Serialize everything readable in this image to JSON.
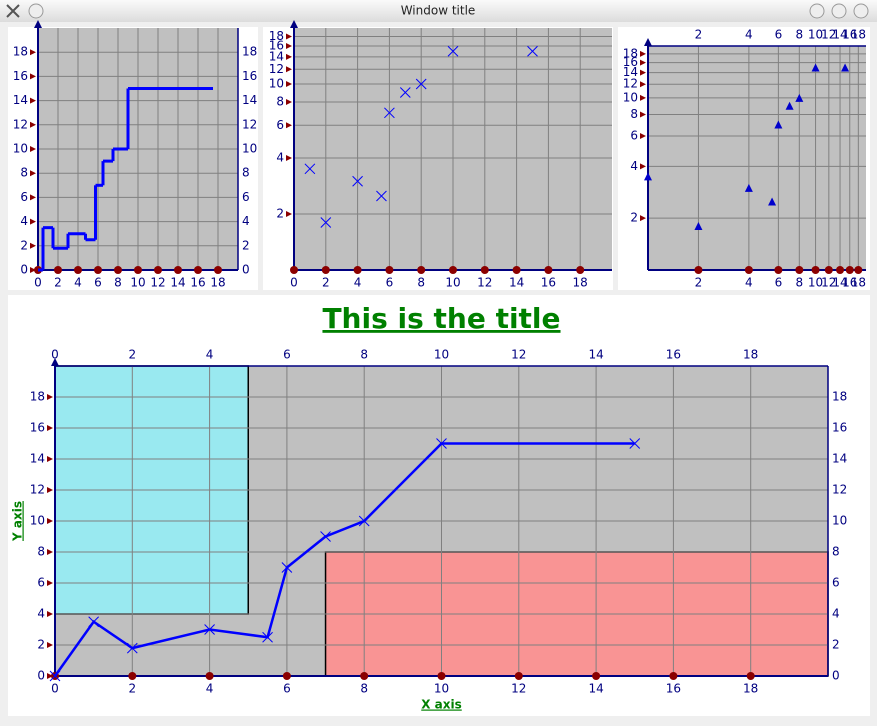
{
  "window": {
    "title": "Window title"
  },
  "chart_data": [
    {
      "type": "step",
      "x": [
        0,
        1,
        2,
        4,
        5.5,
        6,
        7,
        8,
        10,
        15
      ],
      "series": [
        {
          "color": "#0000ff",
          "values": [
            0,
            3.5,
            1.8,
            3,
            2.5,
            7,
            9,
            10,
            15,
            15
          ]
        }
      ],
      "xlim": [
        0,
        20
      ],
      "ylim": [
        0,
        20
      ],
      "xticks": [
        0,
        2,
        4,
        6,
        8,
        10,
        12,
        14,
        16,
        18
      ],
      "yticks": [
        0,
        2,
        4,
        6,
        8,
        10,
        12,
        14,
        16,
        18
      ],
      "grid": true,
      "mirror_y": true,
      "mirror_x": false,
      "xlog": false,
      "ylog": false
    },
    {
      "type": "scatter",
      "marker": "x",
      "x": [
        1,
        2,
        4,
        5.5,
        6,
        7,
        8,
        10,
        15
      ],
      "series": [
        {
          "color": "#0000ff",
          "values": [
            3.5,
            1.8,
            3,
            2.5,
            7,
            9,
            10,
            15,
            15
          ]
        }
      ],
      "xlim": [
        0,
        20
      ],
      "ylim": [
        1,
        20
      ],
      "xticks": [
        0,
        2,
        4,
        6,
        8,
        10,
        12,
        14,
        16,
        18
      ],
      "yticks": [
        2,
        4,
        6,
        8,
        10,
        12,
        14,
        16,
        18
      ],
      "grid": true,
      "mirror_y": false,
      "mirror_x": false,
      "xlog": false,
      "ylog": true
    },
    {
      "type": "scatter",
      "marker": "triangle",
      "x": [
        1,
        2,
        4,
        5.5,
        6,
        7,
        8,
        10,
        15
      ],
      "series": [
        {
          "color": "#0000cc",
          "values": [
            3.5,
            1.8,
            3,
            2.5,
            7,
            9,
            10,
            15,
            15
          ]
        }
      ],
      "xlim": [
        1,
        20
      ],
      "ylim": [
        1,
        20
      ],
      "xticks": [
        2,
        4,
        6,
        8,
        10,
        12,
        14,
        16,
        18
      ],
      "yticks": [
        2,
        4,
        6,
        8,
        10,
        12,
        14,
        16,
        18
      ],
      "grid": true,
      "mirror_y": false,
      "mirror_x": true,
      "xlog": true,
      "ylog": true
    },
    {
      "type": "line",
      "marker": "x",
      "title": "This is the title",
      "xlabel": "X axis",
      "ylabel": "Y axis",
      "x": [
        0,
        1,
        2,
        4,
        5.5,
        6,
        7,
        8,
        10,
        15
      ],
      "series": [
        {
          "color": "#0000ff",
          "values": [
            0,
            3.5,
            1.8,
            3,
            2.5,
            7,
            9,
            10,
            15,
            15
          ]
        }
      ],
      "regions": [
        {
          "x": [
            0,
            5
          ],
          "y": [
            4,
            20
          ],
          "color": "#99e9f0"
        },
        {
          "x": [
            7,
            20
          ],
          "y": [
            0,
            8
          ],
          "color": "#f99494"
        }
      ],
      "xlim": [
        0,
        20
      ],
      "ylim": [
        0,
        20
      ],
      "xticks": [
        0,
        2,
        4,
        6,
        8,
        10,
        12,
        14,
        16,
        18
      ],
      "yticks": [
        0,
        2,
        4,
        6,
        8,
        10,
        12,
        14,
        16,
        18
      ],
      "grid": true,
      "mirror_y": true,
      "mirror_x": true,
      "xlog": false,
      "ylog": false
    }
  ]
}
